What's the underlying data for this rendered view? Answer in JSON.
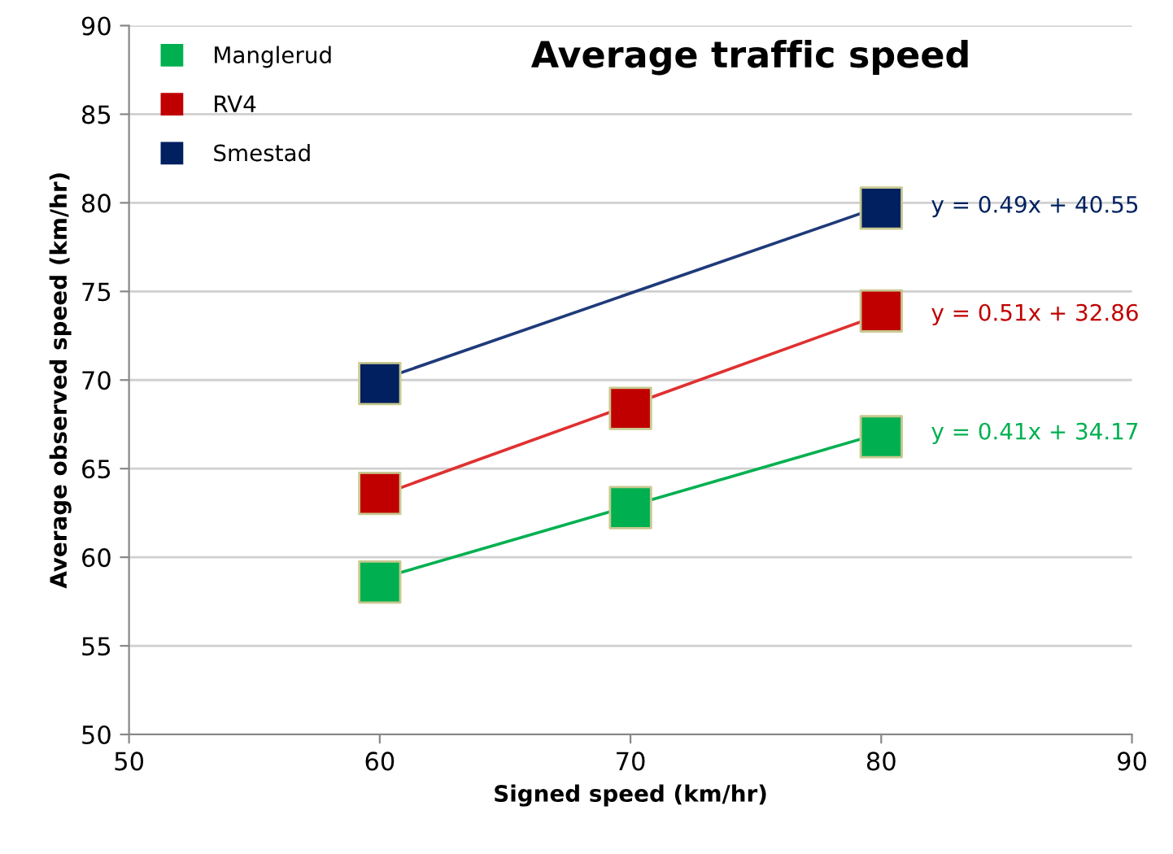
{
  "chart_data": {
    "type": "scatter",
    "title": "Average traffic speed",
    "xlabel": "Signed speed (km/hr)",
    "ylabel": "Average observed speed (km/hr)",
    "xlim": [
      50,
      90
    ],
    "xticks": [
      50,
      60,
      70,
      80,
      90
    ],
    "ylim": [
      50,
      90
    ],
    "yticks": [
      50,
      55,
      60,
      65,
      70,
      75,
      80,
      85,
      90
    ],
    "grid": "y",
    "legend": "top left",
    "series": [
      {
        "name": "Manglerud",
        "color": "#00b050",
        "x": [
          60,
          70,
          80
        ],
        "values": [
          58.6,
          62.8,
          66.8
        ],
        "marker": "square"
      },
      {
        "name": "RV4",
        "color": "#c00000",
        "x": [
          60,
          70,
          80
        ],
        "values": [
          63.6,
          68.4,
          73.9
        ],
        "marker": "square"
      },
      {
        "name": "Smestad",
        "color": "#002060",
        "x": [
          60,
          80
        ],
        "values": [
          69.8,
          79.7
        ],
        "marker": "square"
      },
      {
        "type": "line",
        "color": "#00b050",
        "x": [
          60,
          80
        ],
        "values": [
          58.8,
          67.0
        ],
        "marker": "none"
      },
      {
        "type": "line",
        "color": "#e03030",
        "x": [
          60,
          80
        ],
        "values": [
          63.5,
          73.7
        ],
        "marker": "none"
      },
      {
        "type": "line",
        "color": "#1f3a7a",
        "x": [
          60,
          80
        ],
        "values": [
          70.0,
          79.8
        ],
        "marker": "none"
      }
    ],
    "annotations": [
      "y = 0.41x + 34.17",
      "y = 0.51x + 32.86",
      "y = 0.49x + 40.55"
    ]
  }
}
